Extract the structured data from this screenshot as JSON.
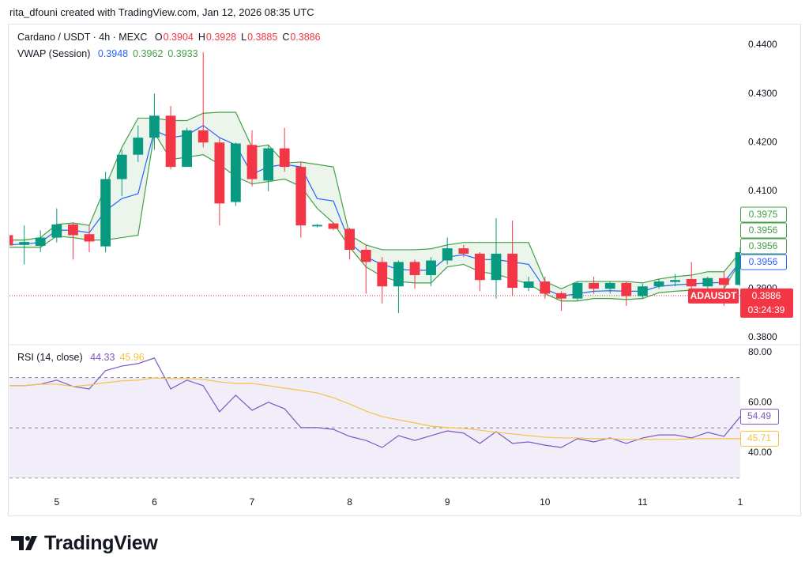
{
  "header": "rita_dfouni created with TradingView.com, Jan 12, 2026 08:35 UTC",
  "footer": "TradingView",
  "chart_data": [
    {
      "type": "candlestick",
      "title": "Cardano / USDT · 4h · MEXC",
      "ohlc": [
        {
          "label": "O",
          "value": 0.3904
        },
        {
          "label": "H",
          "value": 0.3928
        },
        {
          "label": "L",
          "value": 0.3885
        },
        {
          "label": "C",
          "value": 0.3886
        }
      ],
      "ohlc_color": "#f23645",
      "x": [
        4.5,
        4.667,
        4.833,
        5,
        5.167,
        5.333,
        5.5,
        5.667,
        5.833,
        6,
        6.167,
        6.333,
        6.5,
        6.667,
        6.833,
        7,
        7.167,
        7.333,
        7.5,
        7.667,
        7.833,
        8,
        8.167,
        8.333,
        8.5,
        8.667,
        8.833,
        9,
        9.167,
        9.333,
        9.5,
        9.667,
        9.833,
        10,
        10.167,
        10.333,
        10.5,
        10.667,
        10.833,
        11,
        11.167,
        11.333,
        11.5,
        11.667,
        11.833,
        12
      ],
      "xlim": [
        4.516,
        12
      ],
      "xticks": [
        5,
        6,
        7,
        8,
        9,
        10,
        11,
        {
          "value": 12,
          "label": "1"
        }
      ],
      "open": [
        0.401,
        0.399,
        0.3988,
        0.4005,
        0.4032,
        0.4012,
        0.3987,
        0.4125,
        0.4175,
        0.421,
        0.4255,
        0.415,
        0.4225,
        0.42,
        0.4078,
        0.4195,
        0.4122,
        0.4188,
        0.415,
        0.4028,
        0.4034,
        0.4023,
        0.398,
        0.3955,
        0.3905,
        0.3955,
        0.3928,
        0.3958,
        0.3983,
        0.3972,
        0.3918,
        0.3972,
        0.3902,
        0.3915,
        0.3891,
        0.388,
        0.3912,
        0.39,
        0.3912,
        0.3885,
        0.3905,
        0.3914,
        0.392,
        0.3905,
        0.3922,
        0.3908
      ],
      "high": [
        0.4015,
        0.403,
        0.402,
        0.4065,
        0.4035,
        0.403,
        0.414,
        0.4185,
        0.4235,
        0.43,
        0.4275,
        0.423,
        0.4385,
        0.421,
        0.42,
        0.4225,
        0.4195,
        0.423,
        0.416,
        0.4033,
        0.4036,
        0.4025,
        0.399,
        0.3965,
        0.3958,
        0.396,
        0.3965,
        0.4005,
        0.399,
        0.3975,
        0.4045,
        0.404,
        0.3925,
        0.3925,
        0.3895,
        0.3915,
        0.3925,
        0.3915,
        0.3915,
        0.391,
        0.392,
        0.393,
        0.3955,
        0.3925,
        0.3935,
        0.3985
      ],
      "low": [
        0.3985,
        0.395,
        0.3975,
        0.3995,
        0.396,
        0.3975,
        0.3975,
        0.409,
        0.416,
        0.4185,
        0.4145,
        0.415,
        0.419,
        0.403,
        0.407,
        0.411,
        0.41,
        0.414,
        0.4005,
        0.4026,
        0.402,
        0.396,
        0.389,
        0.387,
        0.385,
        0.39,
        0.3905,
        0.395,
        0.3965,
        0.3895,
        0.388,
        0.3885,
        0.3895,
        0.388,
        0.3855,
        0.3875,
        0.389,
        0.389,
        0.3865,
        0.388,
        0.39,
        0.3905,
        0.39,
        0.39,
        0.3865,
        0.3905
      ],
      "close": [
        0.3989,
        0.3996,
        0.4005,
        0.4032,
        0.401,
        0.3997,
        0.4125,
        0.4175,
        0.421,
        0.4255,
        0.415,
        0.4225,
        0.42,
        0.4075,
        0.4198,
        0.4125,
        0.4188,
        0.415,
        0.403,
        0.4031,
        0.4023,
        0.398,
        0.3955,
        0.3905,
        0.3955,
        0.3928,
        0.3958,
        0.3983,
        0.3972,
        0.3918,
        0.3972,
        0.3902,
        0.3915,
        0.389,
        0.388,
        0.3912,
        0.39,
        0.3912,
        0.3885,
        0.3905,
        0.3915,
        0.3918,
        0.3905,
        0.3922,
        0.3908,
        0.3975
      ],
      "up_color": "#089981",
      "down_color": "#f23645",
      "ylim": [
        0.3787,
        0.4442
      ],
      "yticks": [
        {
          "value": 0.38,
          "label": "0.3800"
        },
        {
          "value": 0.39,
          "label": "0.3900"
        },
        {
          "value": 0.41,
          "label": "0.4100"
        },
        {
          "value": 0.42,
          "label": "0.4200"
        },
        {
          "value": 0.43,
          "label": "0.4300"
        },
        {
          "value": 0.44,
          "label": "0.4400"
        }
      ],
      "grid": false,
      "overlay": {
        "name": "VWAP (Session)",
        "fill": "rgba(67,160,71,0.10)",
        "lines": [
          {
            "color": "#2962ff",
            "legend_value": 0.3948,
            "values": [
              0.399,
              0.3992,
              0.3995,
              0.402,
              0.402,
              0.4015,
              0.406,
              0.4085,
              0.4095,
              0.4225,
              0.421,
              0.4215,
              0.4235,
              0.421,
              0.4195,
              0.4135,
              0.415,
              0.4155,
              0.415,
              0.4085,
              0.408,
              0.3995,
              0.3965,
              0.395,
              0.394,
              0.3938,
              0.3938,
              0.3965,
              0.397,
              0.396,
              0.396,
              0.3955,
              0.395,
              0.39,
              0.3885,
              0.389,
              0.3895,
              0.3896,
              0.3895,
              0.3895,
              0.3905,
              0.3908,
              0.391,
              0.3912,
              0.3913,
              0.3956
            ]
          },
          {
            "color": "#43a047",
            "legend_value": 0.3962,
            "values": [
              0.4,
              0.4,
              0.4005,
              0.4032,
              0.4035,
              0.403,
              0.411,
              0.419,
              0.425,
              0.425,
              0.4245,
              0.4245,
              0.426,
              0.4262,
              0.4262,
              0.419,
              0.4195,
              0.4158,
              0.416,
              0.4155,
              0.415,
              0.401,
              0.399,
              0.398,
              0.398,
              0.398,
              0.3982,
              0.399,
              0.3995,
              0.3995,
              0.3995,
              0.3995,
              0.3995,
              0.3915,
              0.39,
              0.3915,
              0.3915,
              0.3915,
              0.3915,
              0.3912,
              0.392,
              0.3925,
              0.3928,
              0.3935,
              0.3935,
              0.3975
            ]
          },
          {
            "color": "#43a047",
            "legend_value": 0.3933,
            "values": [
              0.3985,
              0.3985,
              0.3985,
              0.4008,
              0.4005,
              0.4,
              0.4,
              0.4005,
              0.401,
              0.422,
              0.4165,
              0.417,
              0.4175,
              0.4155,
              0.413,
              0.4115,
              0.412,
              0.4125,
              0.411,
              0.4065,
              0.4035,
              0.3985,
              0.3945,
              0.3925,
              0.3915,
              0.3912,
              0.3912,
              0.3945,
              0.395,
              0.3935,
              0.393,
              0.392,
              0.391,
              0.389,
              0.3875,
              0.3875,
              0.388,
              0.388,
              0.3878,
              0.388,
              0.3892,
              0.3895,
              0.3897,
              0.3898,
              0.39,
              0.3956
            ]
          }
        ]
      },
      "price_labels": [
        {
          "value": 0.3975,
          "color": "#43a047"
        },
        {
          "value": 0.3956,
          "color": "#43a047"
        },
        {
          "value": 0.3956,
          "color": "#43a047"
        },
        {
          "value": 0.3956,
          "color": "#2962ff"
        }
      ],
      "last_price": {
        "symbol": "ADAUSDT",
        "value": 0.3886,
        "countdown": "03:24:39",
        "color": "#f23645"
      }
    },
    {
      "type": "line",
      "title": "RSI (14, close)",
      "ylim": [
        25.2,
        82.8
      ],
      "yticks": [
        {
          "value": 40,
          "label": "40.00"
        },
        {
          "value": 60,
          "label": "60.00"
        },
        {
          "value": 80,
          "label": "80.00"
        }
      ],
      "band": [
        30,
        70
      ],
      "midline": 50,
      "band_color": "rgba(126,87,194,0.10)",
      "series": [
        {
          "color": "#7e57c2",
          "legend_value": 44.33,
          "last_label": 54.49,
          "values": [
            66.8,
            66.8,
            67.4,
            69.0,
            66.5,
            65.5,
            72.8,
            74.6,
            75.6,
            77.8,
            65.5,
            69.0,
            66.8,
            56.4,
            63.0,
            57.0,
            60.2,
            57.6,
            50.1,
            50.1,
            49.4,
            46.6,
            45.0,
            42.2,
            46.9,
            45.0,
            46.9,
            48.8,
            47.9,
            43.8,
            48.5,
            43.8,
            44.4,
            43.1,
            42.2,
            45.7,
            44.4,
            46.0,
            43.8,
            46.0,
            47.2,
            47.2,
            46.0,
            48.2,
            46.6,
            54.5
          ]
        },
        {
          "color": "#f5c343",
          "legend_value": 45.96,
          "last_label": 45.71,
          "values": [
            66.8,
            66.8,
            67.4,
            67.4,
            66.5,
            67.1,
            68.0,
            68.7,
            69.0,
            69.9,
            69.6,
            69.6,
            69.3,
            68.3,
            67.7,
            67.7,
            66.8,
            65.8,
            64.9,
            63.9,
            62.0,
            59.5,
            56.7,
            54.5,
            53.2,
            52.0,
            50.7,
            50.1,
            49.8,
            49.1,
            48.2,
            47.6,
            46.9,
            46.3,
            46.0,
            46.0,
            45.7,
            45.7,
            45.4,
            45.4,
            45.4,
            45.4,
            45.7,
            45.7,
            45.7,
            45.7
          ]
        }
      ]
    }
  ]
}
